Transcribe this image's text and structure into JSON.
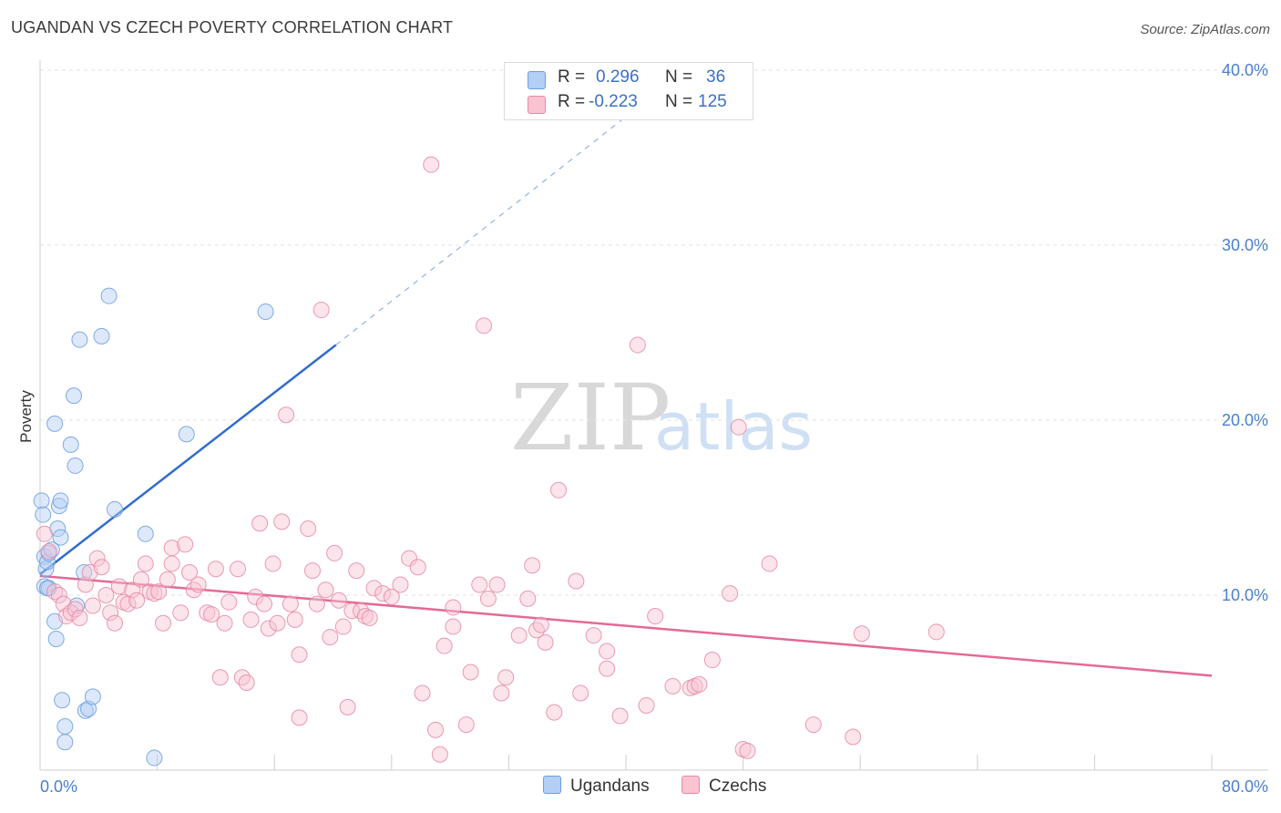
{
  "header": {
    "title": "UGANDAN VS CZECH POVERTY CORRELATION CHART",
    "source": "Source: ZipAtlas.com"
  },
  "legend": {
    "rows": [
      {
        "r_label": "R =",
        "r_value": "0.296",
        "n_label": "N =",
        "n_value": "36",
        "color": "#b3cff5",
        "border": "#6a9ee0"
      },
      {
        "r_label": "R =",
        "r_value": "-0.223",
        "n_label": "N =",
        "n_value": "125",
        "color": "#f9c3d2",
        "border": "#e58aa6"
      }
    ],
    "bottom": [
      {
        "label": "Ugandans",
        "color": "#b3cff5",
        "border": "#6a9ee0"
      },
      {
        "label": "Czechs",
        "color": "#f9c3d2",
        "border": "#e58aa6"
      }
    ]
  },
  "chart_data": {
    "type": "scatter",
    "title": "UGANDAN VS CZECH POVERTY CORRELATION CHART",
    "xlabel": "",
    "ylabel": "Poverty",
    "xlim": [
      0,
      80
    ],
    "ylim": [
      0,
      40
    ],
    "x_tick_labels": [
      "0.0%",
      "80.0%"
    ],
    "y_ticks": [
      10,
      20,
      30,
      40
    ],
    "y_tick_labels": [
      "10.0%",
      "20.0%",
      "30.0%",
      "40.0%"
    ],
    "grid": true,
    "legend_position": "top-center",
    "watermark": "ZIPatlas",
    "series": [
      {
        "name": "Ugandans",
        "color": "#6a9ee0",
        "fill": "#b3cff5",
        "trend": {
          "x": [
            0,
            20.2
          ],
          "y": [
            11.2,
            24.3
          ],
          "dash_to": [
            41.3,
            38.2
          ],
          "color": "#2f6ccc"
        },
        "points": [
          [
            0.1,
            15.4
          ],
          [
            0.2,
            14.6
          ],
          [
            0.3,
            12.2
          ],
          [
            0.4,
            11.5
          ],
          [
            0.5,
            11.9
          ],
          [
            0.6,
            12.4
          ],
          [
            0.3,
            10.5
          ],
          [
            0.6,
            10.4
          ],
          [
            0.8,
            12.6
          ],
          [
            1.0,
            8.5
          ],
          [
            1.1,
            7.5
          ],
          [
            1.2,
            13.8
          ],
          [
            1.3,
            15.1
          ],
          [
            1.4,
            13.3
          ],
          [
            1.4,
            15.4
          ],
          [
            1.0,
            19.8
          ],
          [
            1.5,
            4.0
          ],
          [
            1.7,
            2.5
          ],
          [
            1.7,
            1.6
          ],
          [
            2.1,
            18.6
          ],
          [
            2.3,
            21.4
          ],
          [
            2.4,
            17.4
          ],
          [
            2.5,
            9.4
          ],
          [
            2.7,
            24.6
          ],
          [
            3.0,
            11.3
          ],
          [
            3.1,
            3.4
          ],
          [
            3.3,
            3.5
          ],
          [
            3.6,
            4.2
          ],
          [
            4.2,
            24.8
          ],
          [
            4.7,
            27.1
          ],
          [
            5.1,
            14.9
          ],
          [
            7.2,
            13.5
          ],
          [
            7.8,
            0.7
          ],
          [
            10.0,
            19.2
          ],
          [
            15.4,
            26.2
          ],
          [
            0.5,
            10.4
          ]
        ]
      },
      {
        "name": "Czechs",
        "color": "#e58aa6",
        "fill": "#f9c3d2",
        "trend": {
          "x": [
            0,
            80
          ],
          "y": [
            11.1,
            5.4
          ],
          "color": "#e36a94"
        },
        "points": [
          [
            0.3,
            13.5
          ],
          [
            0.6,
            12.5
          ],
          [
            1.0,
            10.2
          ],
          [
            1.3,
            10.0
          ],
          [
            1.6,
            9.5
          ],
          [
            1.8,
            8.8
          ],
          [
            2.1,
            9.0
          ],
          [
            2.4,
            9.2
          ],
          [
            2.7,
            8.7
          ],
          [
            3.1,
            10.6
          ],
          [
            3.4,
            11.3
          ],
          [
            3.6,
            9.4
          ],
          [
            3.9,
            12.1
          ],
          [
            4.2,
            11.6
          ],
          [
            4.5,
            10.0
          ],
          [
            4.8,
            9.0
          ],
          [
            5.1,
            8.4
          ],
          [
            5.4,
            10.5
          ],
          [
            5.7,
            9.6
          ],
          [
            6.0,
            9.5
          ],
          [
            6.3,
            10.3
          ],
          [
            6.6,
            9.7
          ],
          [
            6.9,
            10.9
          ],
          [
            7.2,
            11.8
          ],
          [
            7.5,
            10.2
          ],
          [
            7.8,
            10.1
          ],
          [
            8.1,
            10.2
          ],
          [
            8.4,
            8.4
          ],
          [
            8.7,
            10.9
          ],
          [
            9.0,
            11.8
          ],
          [
            9.0,
            12.7
          ],
          [
            9.6,
            9.0
          ],
          [
            9.9,
            12.9
          ],
          [
            10.2,
            11.3
          ],
          [
            10.5,
            10.3
          ],
          [
            10.8,
            10.6
          ],
          [
            11.4,
            9.0
          ],
          [
            11.7,
            8.9
          ],
          [
            12.0,
            11.5
          ],
          [
            12.3,
            5.3
          ],
          [
            12.6,
            8.4
          ],
          [
            12.9,
            9.6
          ],
          [
            13.5,
            11.5
          ],
          [
            13.8,
            5.3
          ],
          [
            14.1,
            5.0
          ],
          [
            14.4,
            8.6
          ],
          [
            14.7,
            9.9
          ],
          [
            15.0,
            14.1
          ],
          [
            15.3,
            9.5
          ],
          [
            15.6,
            8.1
          ],
          [
            15.9,
            11.8
          ],
          [
            16.2,
            8.4
          ],
          [
            16.5,
            14.2
          ],
          [
            16.8,
            20.3
          ],
          [
            17.1,
            9.5
          ],
          [
            17.4,
            8.6
          ],
          [
            17.7,
            3.0
          ],
          [
            17.7,
            6.6
          ],
          [
            18.3,
            13.8
          ],
          [
            18.6,
            11.4
          ],
          [
            18.9,
            9.5
          ],
          [
            19.2,
            26.3
          ],
          [
            19.5,
            10.3
          ],
          [
            19.8,
            7.6
          ],
          [
            20.1,
            12.4
          ],
          [
            20.4,
            9.7
          ],
          [
            20.7,
            8.2
          ],
          [
            21.0,
            3.6
          ],
          [
            21.3,
            9.1
          ],
          [
            21.6,
            11.4
          ],
          [
            21.9,
            9.1
          ],
          [
            22.2,
            8.8
          ],
          [
            22.5,
            8.7
          ],
          [
            22.8,
            10.4
          ],
          [
            23.4,
            10.1
          ],
          [
            24.0,
            9.9
          ],
          [
            24.6,
            10.6
          ],
          [
            25.2,
            12.1
          ],
          [
            25.8,
            11.6
          ],
          [
            26.1,
            4.4
          ],
          [
            26.7,
            34.6
          ],
          [
            27.0,
            2.3
          ],
          [
            27.3,
            0.9
          ],
          [
            27.6,
            7.1
          ],
          [
            28.2,
            9.3
          ],
          [
            28.2,
            8.2
          ],
          [
            29.1,
            2.6
          ],
          [
            29.4,
            5.6
          ],
          [
            30.0,
            10.6
          ],
          [
            30.3,
            25.4
          ],
          [
            30.6,
            9.8
          ],
          [
            31.2,
            10.6
          ],
          [
            31.5,
            4.4
          ],
          [
            31.8,
            5.3
          ],
          [
            32.7,
            7.7
          ],
          [
            33.3,
            9.8
          ],
          [
            33.6,
            11.7
          ],
          [
            33.9,
            8.0
          ],
          [
            34.2,
            8.3
          ],
          [
            34.5,
            7.3
          ],
          [
            35.1,
            3.3
          ],
          [
            35.4,
            16.0
          ],
          [
            36.6,
            10.8
          ],
          [
            36.9,
            4.4
          ],
          [
            37.8,
            7.7
          ],
          [
            38.7,
            6.8
          ],
          [
            38.7,
            5.8
          ],
          [
            39.6,
            3.1
          ],
          [
            40.8,
            24.3
          ],
          [
            41.4,
            3.7
          ],
          [
            42.0,
            8.8
          ],
          [
            43.2,
            4.8
          ],
          [
            44.4,
            4.7
          ],
          [
            44.7,
            4.8
          ],
          [
            45.0,
            4.9
          ],
          [
            45.9,
            6.3
          ],
          [
            47.1,
            10.1
          ],
          [
            47.7,
            19.6
          ],
          [
            48.0,
            1.2
          ],
          [
            48.3,
            1.1
          ],
          [
            49.8,
            11.8
          ],
          [
            52.8,
            2.6
          ],
          [
            55.5,
            1.9
          ],
          [
            56.1,
            7.8
          ],
          [
            61.2,
            7.9
          ]
        ]
      }
    ]
  }
}
